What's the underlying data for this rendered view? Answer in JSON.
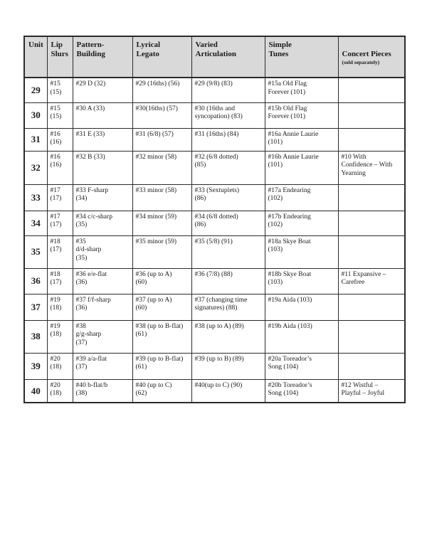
{
  "colors": {
    "page_bg": "#ffffff",
    "header_bg": "#d9d9d9",
    "line": "#2b2b2b",
    "ink": "#1b1b1b"
  },
  "table": {
    "column_keys": [
      "lip-slurs",
      "pattern-building",
      "lyrical-legato",
      "varied-articulation",
      "simple-tunes",
      "concert-pieces"
    ],
    "header": [
      {
        "label": "Unit",
        "sublabel": ""
      },
      {
        "label": "Lip\nSlurs",
        "sublabel": ""
      },
      {
        "label": "Pattern-\nBuilding",
        "sublabel": ""
      },
      {
        "label": "Lyrical\nLegato",
        "sublabel": ""
      },
      {
        "label": "Varied\nArticulation",
        "sublabel": ""
      },
      {
        "label": "Simple\nTunes",
        "sublabel": ""
      },
      {
        "label": "Concert Pieces",
        "sublabel": "(sold separately)"
      }
    ],
    "rows": [
      {
        "unit": "29",
        "cells": [
          "#15\n(15)",
          "#29 D (32)",
          "#29 (16ths) (56)",
          "#29 (9/8) (83)",
          "#15a Old Flag\nForever (101)",
          ""
        ]
      },
      {
        "unit": "30",
        "cells": [
          "#15\n(15)",
          "#30 A (33)",
          "#30(16ths) (57)",
          "#30 (16ths and\nsyncopation) (83)",
          "#15b Old Flag\nForever (101)",
          ""
        ]
      },
      {
        "unit": "31",
        "cells": [
          "#16\n(16)",
          "#31 E (33)",
          "#31 (6/8) (57)",
          "#31 (16ths) (84)",
          "#16a Annie Laurie\n(101)",
          ""
        ]
      },
      {
        "unit": "32",
        "cells": [
          "#16\n(16)",
          "#32 B (33)",
          "#32 minor (58)",
          "#32 (6/8 dotted)\n(85)",
          "#16b Annie Laurie\n(101)",
          "#10 With\nConfidence – With\nYearning"
        ]
      },
      {
        "unit": "33",
        "cells": [
          "#17\n(17)",
          "#33 F-sharp\n(34)",
          "#33 minor (58)",
          "#33 (Sextuplets)\n(86)",
          "#17a Endearing\n(102)",
          ""
        ]
      },
      {
        "unit": "34",
        "cells": [
          "#17\n(17)",
          "#34 c/c-sharp\n(35)",
          "#34 minor (59)",
          "#34 (6/8 dotted)\n(86)",
          "#17b Endearing\n(102)",
          ""
        ]
      },
      {
        "unit": "35",
        "cells": [
          "#18\n(17)",
          "#35\nd/d-sharp\n(35)",
          "#35 minor (59)",
          "#35 (5/8) (91)",
          "#18a Skye Boat\n(103)",
          ""
        ]
      },
      {
        "unit": "36",
        "cells": [
          "#18\n(17)",
          "#36 e/e-flat\n(36)",
          "#36 (up to A)\n(60)",
          "#36 (7/8) (88)",
          "#18b Skye Boat\n(103)",
          "#11 Expansive –\nCarefree"
        ]
      },
      {
        "unit": "37",
        "cells": [
          "#19\n(18)",
          "#37 f/f-sharp\n(36)",
          "#37 (up to A)\n(60)",
          "#37 (changing time\nsignatures) (88)",
          "#19a Aida (103)",
          ""
        ]
      },
      {
        "unit": "38",
        "cells": [
          "#19\n(18)",
          "#38\ng/g-sharp\n(37)",
          "#38 (up to B-flat)\n(61)",
          "#38 (up to A) (89)",
          "#19b Aida (103)",
          ""
        ]
      },
      {
        "unit": "39",
        "cells": [
          "#20\n(18)",
          "#39 a/a-flat\n(37)",
          "#39 (up to B-flat)\n(61)",
          "#39 (up to B) (89)",
          "#20a Toreador’s\nSong (104)",
          ""
        ]
      },
      {
        "unit": "40",
        "cells": [
          "#20\n(18)",
          "#40 b-flat/b\n(38)",
          "#40 (up to C)\n(62)",
          "#40(up to C) (90)",
          "#20b Toreador’s\nSong (104)",
          "#12 Wistful –\nPlayful – Joyful"
        ]
      }
    ]
  }
}
